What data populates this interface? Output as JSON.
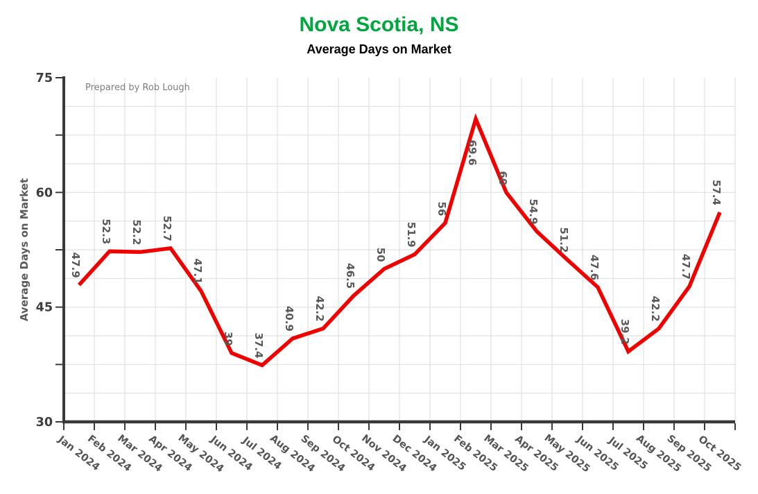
{
  "chart_data": {
    "type": "line",
    "title": "Nova Scotia, NS",
    "subtitle": "Average Days on Market",
    "ylabel": "Average Days on Market",
    "annotation": "Prepared by Rob Lough",
    "categories": [
      "Jan 2024",
      "Feb 2024",
      "Mar 2024",
      "Apr 2024",
      "May 2024",
      "Jun 2024",
      "Jul 2024",
      "Aug 2024",
      "Sep 2024",
      "Oct 2024",
      "Nov 2024",
      "Dec 2024",
      "Jan 2025",
      "Feb 2025",
      "Mar 2025",
      "Apr 2025",
      "May 2025",
      "Jun 2025",
      "Jul 2025",
      "Aug 2025",
      "Sep 2025",
      "Oct 2025"
    ],
    "values": [
      47.9,
      52.3,
      52.2,
      52.7,
      47.1,
      39,
      37.4,
      40.9,
      42.2,
      46.5,
      50,
      51.9,
      56,
      69.6,
      60,
      54.9,
      51.2,
      47.6,
      39.2,
      42.2,
      47.7,
      57.4
    ],
    "ylim": [
      30,
      75
    ],
    "ytick_labels": [
      "30",
      "45",
      "60",
      "75"
    ],
    "ytick_label_values": [
      30,
      45,
      60,
      75
    ],
    "ytick_step": 7.5,
    "ygrid_step": 3.75,
    "grid": true,
    "legend_position": "none",
    "xtick_rotation_deg": 38,
    "data_label_rotation_deg": 90,
    "colors": {
      "line": "#f10000",
      "title": "#00a63e",
      "subtitle": "#000000",
      "grid": "#e0e0e0",
      "axis": "#3a3a3a",
      "ytick_label": "#3d3d3d",
      "xtick_label": "#555555",
      "data_label": "#595959",
      "axis_label": "#5a5a5a",
      "annotation": "#7d7d7d",
      "background": "#ffffff"
    }
  }
}
